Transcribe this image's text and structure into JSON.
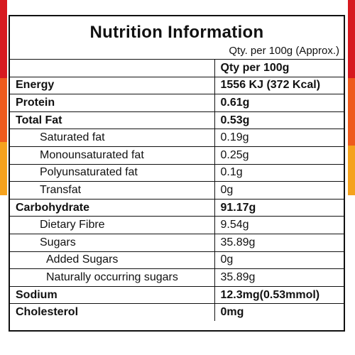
{
  "title": "Nutrition Information",
  "subtitle": "Qty. per 100g (Approx.)",
  "column_header": "Qty per 100g",
  "rows": [
    {
      "label": "Energy",
      "value": "1556 KJ (372 Kcal)"
    },
    {
      "label": "Protein",
      "value": "0.61g"
    },
    {
      "label": "Total Fat",
      "value": "0.53g"
    },
    {
      "label": "Saturated fat",
      "value": "0.19g"
    },
    {
      "label": "Monounsaturated fat",
      "value": "0.25g"
    },
    {
      "label": "Polyunsaturated fat",
      "value": "0.1g"
    },
    {
      "label": "Transfat",
      "value": "0g"
    },
    {
      "label": "Carbohydrate",
      "value": "91.17g"
    },
    {
      "label": "Dietary Fibre",
      "value": "9.54g"
    },
    {
      "label": "Sugars",
      "value": "35.89g"
    },
    {
      "label": "Added Sugars",
      "value": "0g"
    },
    {
      "label": "Naturally occurring sugars",
      "value": "35.89g"
    },
    {
      "label": "Sodium",
      "value": "12.3mg(0.53mmol)"
    },
    {
      "label": "Cholesterol",
      "value": "0mg"
    }
  ],
  "colors": {
    "border_red": "#d7191f",
    "border_orange": "#ee5a1c",
    "border_yellow": "#f5a21d",
    "line": "#111111"
  }
}
